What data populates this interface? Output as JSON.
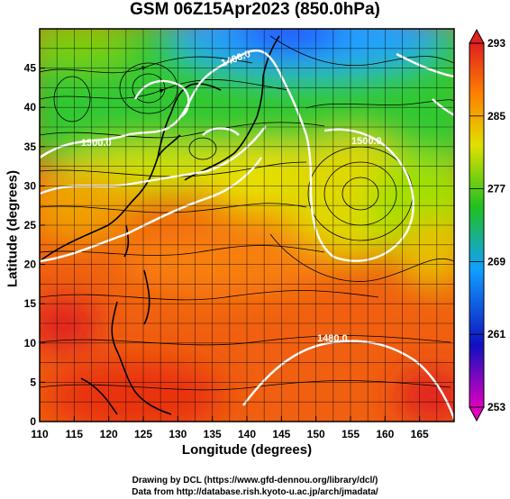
{
  "title": "GSM 06Z15Apr2023 (850.0hPa)",
  "xlabel": "Longitude (degrees)",
  "ylabel": "Latitude  (degrees)",
  "credits": {
    "line1": "Drawing by DCL (https://www.gfd-dennou.org/library/dcl/)",
    "line2": "Data from http://database.rish.kyoto-u.ac.jp/arch/jmadata/"
  },
  "chart_data": {
    "type": "heatmap",
    "xlim": [
      110,
      170
    ],
    "ylim": [
      0,
      50
    ],
    "x_ticks": [
      110,
      115,
      120,
      125,
      130,
      135,
      140,
      145,
      150,
      155,
      160,
      165
    ],
    "y_ticks": [
      0,
      5,
      10,
      15,
      20,
      25,
      30,
      35,
      40,
      45
    ],
    "grid": true,
    "colorbar": {
      "ticks": [
        253,
        261,
        269,
        277,
        285,
        293
      ],
      "range": [
        253,
        293
      ],
      "colors": [
        "#e000c0",
        "#1010c0",
        "#10a0ff",
        "#20c020",
        "#e0e000",
        "#ff8000",
        "#e02020"
      ]
    },
    "contour_labels": [
      {
        "text": "1400.0",
        "lon": 131.5,
        "lat": 46
      },
      {
        "text": "1500.0",
        "lon": 117,
        "lat": 35.5
      },
      {
        "text": "1500.0",
        "lon": 154,
        "lat": 35.5
      },
      {
        "text": "1480.0",
        "lon": 152,
        "lat": 12
      }
    ],
    "features": [
      "temperature shading",
      "geopotential height contours",
      "wind streamlines",
      "coastlines"
    ]
  },
  "colors": {
    "warm": "#f05010",
    "hot": "#e02020",
    "mild": "#ffa000",
    "temperate": "#e8e000",
    "cool": "#40d040",
    "cold": "#10b0ff",
    "frigid": "#1060ff",
    "contour": "#ffffff",
    "stream": "#000000"
  }
}
